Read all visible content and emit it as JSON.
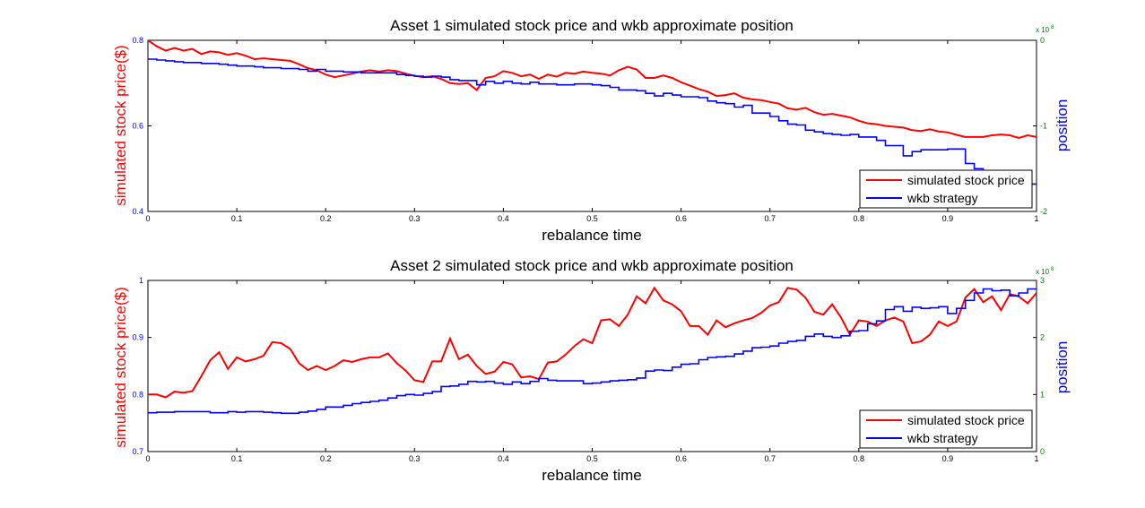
{
  "chart_data": [
    {
      "type": "line",
      "title": "Asset 1 simulated stock price and wkb approximate position",
      "xlabel": "rebalance time",
      "ylabel_left": "simulated stock price($)",
      "ylabel_right": "position",
      "xlim": [
        0,
        1
      ],
      "ylim_left": [
        0.4,
        0.8
      ],
      "ylim_right": [
        -2,
        0
      ],
      "right_exponent": "x 10^8",
      "xticks": [
        "0",
        "0.1",
        "0.2",
        "0.3",
        "0.4",
        "0.5",
        "0.6",
        "0.7",
        "0.8",
        "0.9",
        "1"
      ],
      "yticks_left": [
        "0.4",
        "0.6",
        "0.8"
      ],
      "yticks_right": [
        "-2",
        "-1",
        "0"
      ],
      "legend": [
        "simulated stock price",
        "wkb strategy"
      ],
      "legend_position": "bottom-right",
      "colors": {
        "price": "#ff0000",
        "position": "#0000ff",
        "right_ticks": "#008000"
      },
      "series": [
        {
          "name": "simulated stock price",
          "axis": "left",
          "style": "line",
          "x": [
            0,
            0.01,
            0.02,
            0.03,
            0.04,
            0.05,
            0.06,
            0.07,
            0.08,
            0.09,
            0.1,
            0.11,
            0.12,
            0.13,
            0.14,
            0.15,
            0.16,
            0.17,
            0.18,
            0.19,
            0.2,
            0.21,
            0.22,
            0.23,
            0.24,
            0.25,
            0.26,
            0.27,
            0.28,
            0.29,
            0.3,
            0.31,
            0.32,
            0.33,
            0.34,
            0.35,
            0.36,
            0.37,
            0.38,
            0.39,
            0.4,
            0.41,
            0.42,
            0.43,
            0.44,
            0.45,
            0.46,
            0.47,
            0.48,
            0.49,
            0.5,
            0.51,
            0.52,
            0.53,
            0.54,
            0.55,
            0.56,
            0.57,
            0.58,
            0.59,
            0.6,
            0.61,
            0.62,
            0.63,
            0.64,
            0.65,
            0.66,
            0.67,
            0.68,
            0.69,
            0.7,
            0.71,
            0.72,
            0.73,
            0.74,
            0.75,
            0.76,
            0.77,
            0.78,
            0.79,
            0.8,
            0.81,
            0.82,
            0.83,
            0.84,
            0.85,
            0.86,
            0.87,
            0.88,
            0.89,
            0.9,
            0.91,
            0.92,
            0.93,
            0.94,
            0.95,
            0.96,
            0.97,
            0.98,
            0.99,
            1.0
          ],
          "values": [
            0.8,
            0.786,
            0.776,
            0.782,
            0.776,
            0.78,
            0.768,
            0.774,
            0.772,
            0.766,
            0.77,
            0.764,
            0.756,
            0.758,
            0.756,
            0.754,
            0.752,
            0.744,
            0.735,
            0.73,
            0.72,
            0.714,
            0.718,
            0.722,
            0.727,
            0.73,
            0.727,
            0.73,
            0.728,
            0.722,
            0.717,
            0.714,
            0.716,
            0.71,
            0.7,
            0.698,
            0.7,
            0.684,
            0.712,
            0.716,
            0.728,
            0.724,
            0.716,
            0.72,
            0.71,
            0.72,
            0.715,
            0.724,
            0.722,
            0.727,
            0.724,
            0.722,
            0.718,
            0.73,
            0.738,
            0.732,
            0.712,
            0.712,
            0.718,
            0.712,
            0.702,
            0.694,
            0.686,
            0.68,
            0.67,
            0.672,
            0.676,
            0.666,
            0.662,
            0.66,
            0.656,
            0.652,
            0.641,
            0.638,
            0.642,
            0.632,
            0.626,
            0.628,
            0.624,
            0.62,
            0.612,
            0.606,
            0.604,
            0.6,
            0.598,
            0.596,
            0.59,
            0.588,
            0.592,
            0.587,
            0.585,
            0.579,
            0.574,
            0.574,
            0.574,
            0.578,
            0.58,
            0.578,
            0.572,
            0.578,
            0.574
          ]
        },
        {
          "name": "wkb strategy",
          "axis": "right",
          "style": "step",
          "x": [
            0,
            0.01,
            0.02,
            0.03,
            0.04,
            0.05,
            0.06,
            0.07,
            0.08,
            0.09,
            0.1,
            0.11,
            0.12,
            0.13,
            0.14,
            0.15,
            0.16,
            0.17,
            0.18,
            0.19,
            0.2,
            0.21,
            0.22,
            0.23,
            0.24,
            0.25,
            0.26,
            0.27,
            0.28,
            0.29,
            0.3,
            0.31,
            0.32,
            0.33,
            0.34,
            0.35,
            0.36,
            0.37,
            0.38,
            0.39,
            0.4,
            0.41,
            0.42,
            0.43,
            0.44,
            0.45,
            0.46,
            0.47,
            0.48,
            0.49,
            0.5,
            0.51,
            0.52,
            0.53,
            0.54,
            0.55,
            0.56,
            0.57,
            0.58,
            0.59,
            0.6,
            0.61,
            0.62,
            0.63,
            0.64,
            0.65,
            0.66,
            0.67,
            0.68,
            0.69,
            0.7,
            0.71,
            0.72,
            0.73,
            0.74,
            0.75,
            0.76,
            0.77,
            0.78,
            0.79,
            0.8,
            0.81,
            0.82,
            0.83,
            0.84,
            0.85,
            0.86,
            0.87,
            0.88,
            0.89,
            0.9,
            0.91,
            0.92,
            0.93,
            0.94,
            0.95,
            0.96,
            0.97,
            0.98,
            0.99
          ],
          "values": [
            -0.22,
            -0.23,
            -0.24,
            -0.25,
            -0.26,
            -0.26,
            -0.27,
            -0.27,
            -0.28,
            -0.29,
            -0.3,
            -0.3,
            -0.31,
            -0.32,
            -0.32,
            -0.33,
            -0.33,
            -0.34,
            -0.36,
            -0.34,
            -0.36,
            -0.36,
            -0.37,
            -0.37,
            -0.38,
            -0.38,
            -0.38,
            -0.38,
            -0.4,
            -0.41,
            -0.42,
            -0.43,
            -0.42,
            -0.43,
            -0.46,
            -0.47,
            -0.47,
            -0.52,
            -0.48,
            -0.5,
            -0.48,
            -0.5,
            -0.51,
            -0.49,
            -0.51,
            -0.51,
            -0.52,
            -0.52,
            -0.51,
            -0.51,
            -0.52,
            -0.53,
            -0.55,
            -0.58,
            -0.58,
            -0.59,
            -0.62,
            -0.65,
            -0.62,
            -0.64,
            -0.66,
            -0.66,
            -0.67,
            -0.71,
            -0.73,
            -0.74,
            -0.78,
            -0.76,
            -0.85,
            -0.85,
            -0.89,
            -0.94,
            -0.98,
            -0.99,
            -1.05,
            -1.07,
            -1.09,
            -1.1,
            -1.11,
            -1.1,
            -1.13,
            -1.13,
            -1.17,
            -1.23,
            -1.23,
            -1.35,
            -1.3,
            -1.28,
            -1.28,
            -1.28,
            -1.27,
            -1.27,
            -1.44,
            -1.5,
            -1.56,
            -1.63,
            -1.6,
            -1.65,
            -1.7,
            -1.68
          ]
        }
      ]
    },
    {
      "type": "line",
      "title": "Asset 2 simulated stock price and wkb approximate position",
      "xlabel": "rebalance time",
      "ylabel_left": "simulated stock price($)",
      "ylabel_right": "position",
      "xlim": [
        0,
        1
      ],
      "ylim_left": [
        0.7,
        1.0
      ],
      "ylim_right": [
        0,
        3
      ],
      "right_exponent": "x 10^8",
      "xticks": [
        "0",
        "0.1",
        "0.2",
        "0.3",
        "0.4",
        "0.5",
        "0.6",
        "0.7",
        "0.8",
        "0.9",
        "1"
      ],
      "yticks_left": [
        "0.7",
        "0.8",
        "0.9",
        "1"
      ],
      "yticks_right": [
        "0",
        "1",
        "2",
        "3"
      ],
      "legend": [
        "simulated stock price",
        "wkb strategy"
      ],
      "legend_position": "bottom-right",
      "colors": {
        "price": "#ff0000",
        "position": "#0000ff",
        "right_ticks": "#008000"
      },
      "series": [
        {
          "name": "simulated stock price",
          "axis": "left",
          "style": "line",
          "x": [
            0,
            0.01,
            0.02,
            0.03,
            0.04,
            0.05,
            0.06,
            0.07,
            0.08,
            0.09,
            0.1,
            0.11,
            0.12,
            0.13,
            0.14,
            0.15,
            0.16,
            0.17,
            0.18,
            0.19,
            0.2,
            0.21,
            0.22,
            0.23,
            0.24,
            0.25,
            0.26,
            0.27,
            0.28,
            0.29,
            0.3,
            0.31,
            0.32,
            0.33,
            0.34,
            0.35,
            0.36,
            0.37,
            0.38,
            0.39,
            0.4,
            0.41,
            0.42,
            0.43,
            0.44,
            0.45,
            0.46,
            0.47,
            0.48,
            0.49,
            0.5,
            0.51,
            0.52,
            0.53,
            0.54,
            0.55,
            0.56,
            0.57,
            0.58,
            0.59,
            0.6,
            0.61,
            0.62,
            0.63,
            0.64,
            0.65,
            0.66,
            0.67,
            0.68,
            0.69,
            0.7,
            0.71,
            0.72,
            0.73,
            0.74,
            0.75,
            0.76,
            0.77,
            0.78,
            0.79,
            0.8,
            0.81,
            0.82,
            0.83,
            0.84,
            0.85,
            0.86,
            0.87,
            0.88,
            0.89,
            0.9,
            0.91,
            0.92,
            0.93,
            0.94,
            0.95,
            0.96,
            0.97,
            0.98,
            0.99,
            1.0
          ],
          "values": [
            0.8,
            0.8,
            0.795,
            0.805,
            0.803,
            0.806,
            0.832,
            0.86,
            0.874,
            0.845,
            0.865,
            0.858,
            0.862,
            0.868,
            0.892,
            0.89,
            0.88,
            0.855,
            0.843,
            0.85,
            0.843,
            0.85,
            0.86,
            0.857,
            0.862,
            0.865,
            0.865,
            0.872,
            0.855,
            0.842,
            0.825,
            0.822,
            0.858,
            0.858,
            0.898,
            0.862,
            0.87,
            0.85,
            0.836,
            0.84,
            0.857,
            0.853,
            0.83,
            0.832,
            0.827,
            0.856,
            0.858,
            0.87,
            0.885,
            0.897,
            0.89,
            0.93,
            0.932,
            0.92,
            0.94,
            0.972,
            0.96,
            0.987,
            0.965,
            0.958,
            0.946,
            0.92,
            0.92,
            0.905,
            0.93,
            0.918,
            0.925,
            0.93,
            0.934,
            0.943,
            0.956,
            0.962,
            0.987,
            0.984,
            0.97,
            0.945,
            0.94,
            0.958,
            0.935,
            0.905,
            0.93,
            0.928,
            0.92,
            0.93,
            0.935,
            0.928,
            0.89,
            0.893,
            0.905,
            0.928,
            0.92,
            0.928,
            0.97,
            0.985,
            0.962,
            0.972,
            0.948,
            0.976,
            0.972,
            0.96,
            0.978
          ]
        },
        {
          "name": "wkb strategy",
          "axis": "right",
          "style": "step",
          "x": [
            0,
            0.01,
            0.02,
            0.03,
            0.04,
            0.05,
            0.06,
            0.07,
            0.08,
            0.09,
            0.1,
            0.11,
            0.12,
            0.13,
            0.14,
            0.15,
            0.16,
            0.17,
            0.18,
            0.19,
            0.2,
            0.21,
            0.22,
            0.23,
            0.24,
            0.25,
            0.26,
            0.27,
            0.28,
            0.29,
            0.3,
            0.31,
            0.32,
            0.33,
            0.34,
            0.35,
            0.36,
            0.37,
            0.38,
            0.39,
            0.4,
            0.41,
            0.42,
            0.43,
            0.44,
            0.45,
            0.46,
            0.47,
            0.48,
            0.49,
            0.5,
            0.51,
            0.52,
            0.53,
            0.54,
            0.55,
            0.56,
            0.57,
            0.58,
            0.59,
            0.6,
            0.61,
            0.62,
            0.63,
            0.64,
            0.65,
            0.66,
            0.67,
            0.68,
            0.69,
            0.7,
            0.71,
            0.72,
            0.73,
            0.74,
            0.75,
            0.76,
            0.77,
            0.78,
            0.79,
            0.8,
            0.81,
            0.82,
            0.83,
            0.84,
            0.85,
            0.86,
            0.87,
            0.88,
            0.89,
            0.9,
            0.91,
            0.92,
            0.93,
            0.94,
            0.95,
            0.96,
            0.97,
            0.98,
            0.99
          ],
          "values": [
            0.68,
            0.69,
            0.69,
            0.7,
            0.7,
            0.7,
            0.7,
            0.68,
            0.68,
            0.7,
            0.69,
            0.7,
            0.7,
            0.69,
            0.68,
            0.67,
            0.67,
            0.69,
            0.71,
            0.74,
            0.78,
            0.78,
            0.81,
            0.84,
            0.86,
            0.88,
            0.9,
            0.94,
            0.98,
            1.0,
            0.99,
            1.02,
            1.05,
            1.14,
            1.15,
            1.18,
            1.23,
            1.22,
            1.23,
            1.2,
            1.18,
            1.22,
            1.19,
            1.23,
            1.28,
            1.25,
            1.24,
            1.24,
            1.24,
            1.19,
            1.2,
            1.22,
            1.24,
            1.25,
            1.26,
            1.29,
            1.41,
            1.43,
            1.42,
            1.48,
            1.53,
            1.54,
            1.61,
            1.65,
            1.66,
            1.67,
            1.71,
            1.76,
            1.82,
            1.83,
            1.85,
            1.9,
            1.93,
            1.95,
            2.02,
            2.06,
            2.02,
            2.0,
            2.03,
            2.11,
            2.12,
            2.24,
            2.29,
            2.49,
            2.54,
            2.46,
            2.53,
            2.51,
            2.52,
            2.54,
            2.42,
            2.51,
            2.65,
            2.78,
            2.85,
            2.82,
            2.83,
            2.73,
            2.78,
            2.85
          ]
        }
      ]
    }
  ]
}
